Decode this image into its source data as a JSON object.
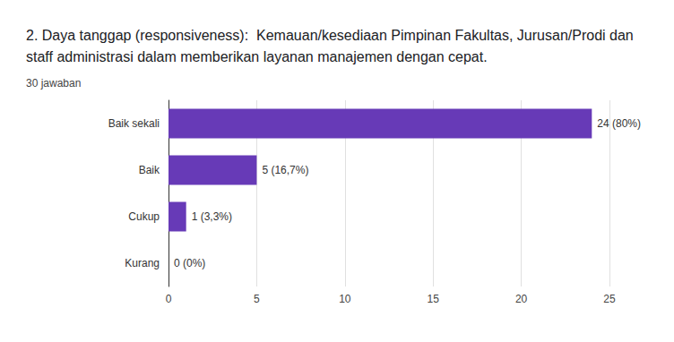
{
  "chart_data": {
    "type": "bar",
    "orientation": "horizontal",
    "title": "2. Daya tanggap (responsiveness):  Kemauan/kesediaan Pimpinan Fakultas, Jurusan/Prodi dan staff administrasi dalam memberikan layanan manajemen dengan cepat.",
    "subtitle": "30 jawaban",
    "categories": [
      "Baik sekali",
      "Baik",
      "Cukup",
      "Kurang"
    ],
    "values": [
      24,
      5,
      1,
      0
    ],
    "value_labels": [
      "24 (80%)",
      "5 (16,7%)",
      "1 (3,3%)",
      "0 (0%)"
    ],
    "data_labels": true,
    "color": "#673ab7",
    "xlim": [
      0,
      25
    ],
    "xticks": [
      0,
      5,
      10,
      15,
      20,
      25
    ],
    "grid": true
  }
}
